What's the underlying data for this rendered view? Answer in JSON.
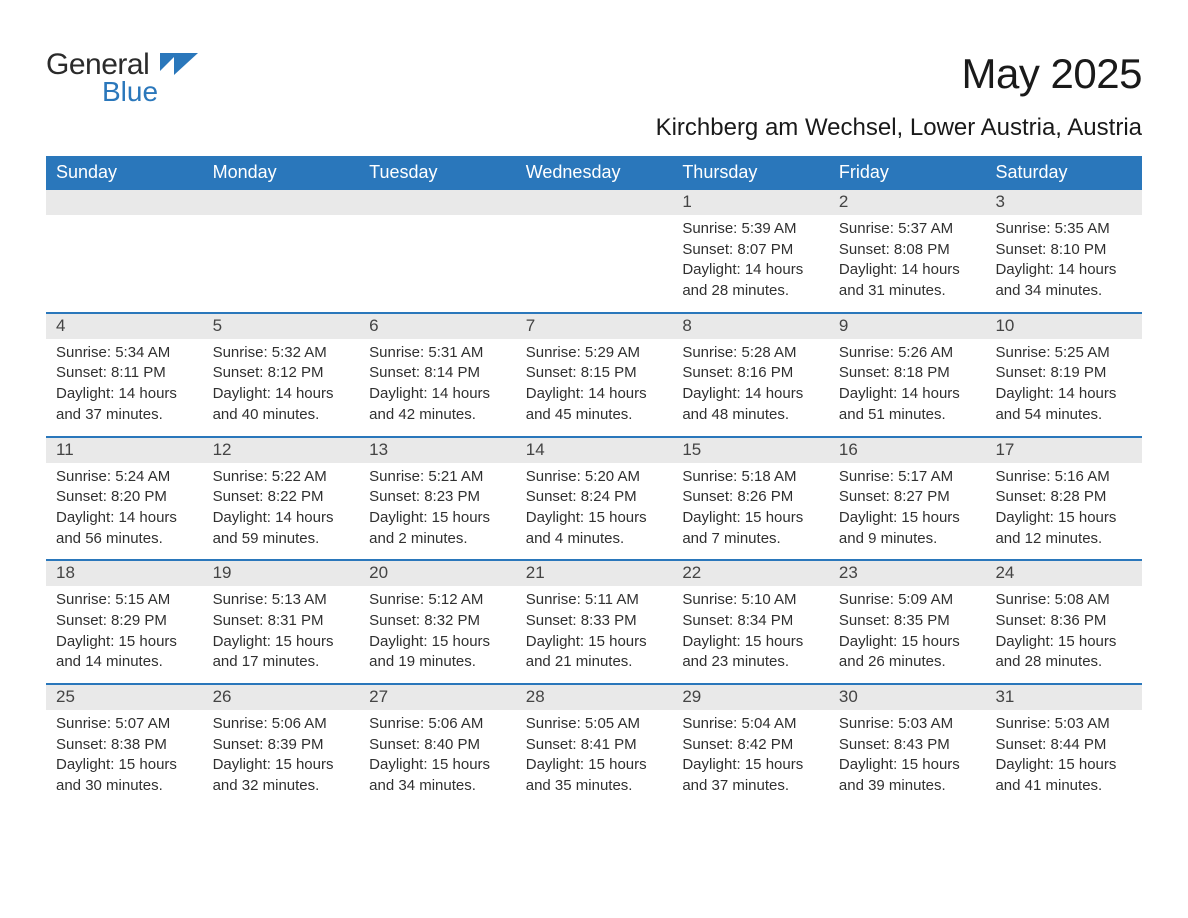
{
  "brand": {
    "general": "General",
    "blue": "Blue"
  },
  "title": "May 2025",
  "location": "Kirchberg am Wechsel, Lower Austria, Austria",
  "colors": {
    "header_bg": "#2a77bb",
    "header_text": "#ffffff",
    "daynum_bg": "#e9e9e9",
    "week_border": "#2a77bb",
    "body_text": "#303030",
    "background": "#ffffff"
  },
  "weekdays": [
    "Sunday",
    "Monday",
    "Tuesday",
    "Wednesday",
    "Thursday",
    "Friday",
    "Saturday"
  ],
  "weeks": [
    [
      {
        "day": "",
        "sunrise": "",
        "sunset": "",
        "daylight": ""
      },
      {
        "day": "",
        "sunrise": "",
        "sunset": "",
        "daylight": ""
      },
      {
        "day": "",
        "sunrise": "",
        "sunset": "",
        "daylight": ""
      },
      {
        "day": "",
        "sunrise": "",
        "sunset": "",
        "daylight": ""
      },
      {
        "day": "1",
        "sunrise": "Sunrise: 5:39 AM",
        "sunset": "Sunset: 8:07 PM",
        "daylight": "Daylight: 14 hours and 28 minutes."
      },
      {
        "day": "2",
        "sunrise": "Sunrise: 5:37 AM",
        "sunset": "Sunset: 8:08 PM",
        "daylight": "Daylight: 14 hours and 31 minutes."
      },
      {
        "day": "3",
        "sunrise": "Sunrise: 5:35 AM",
        "sunset": "Sunset: 8:10 PM",
        "daylight": "Daylight: 14 hours and 34 minutes."
      }
    ],
    [
      {
        "day": "4",
        "sunrise": "Sunrise: 5:34 AM",
        "sunset": "Sunset: 8:11 PM",
        "daylight": "Daylight: 14 hours and 37 minutes."
      },
      {
        "day": "5",
        "sunrise": "Sunrise: 5:32 AM",
        "sunset": "Sunset: 8:12 PM",
        "daylight": "Daylight: 14 hours and 40 minutes."
      },
      {
        "day": "6",
        "sunrise": "Sunrise: 5:31 AM",
        "sunset": "Sunset: 8:14 PM",
        "daylight": "Daylight: 14 hours and 42 minutes."
      },
      {
        "day": "7",
        "sunrise": "Sunrise: 5:29 AM",
        "sunset": "Sunset: 8:15 PM",
        "daylight": "Daylight: 14 hours and 45 minutes."
      },
      {
        "day": "8",
        "sunrise": "Sunrise: 5:28 AM",
        "sunset": "Sunset: 8:16 PM",
        "daylight": "Daylight: 14 hours and 48 minutes."
      },
      {
        "day": "9",
        "sunrise": "Sunrise: 5:26 AM",
        "sunset": "Sunset: 8:18 PM",
        "daylight": "Daylight: 14 hours and 51 minutes."
      },
      {
        "day": "10",
        "sunrise": "Sunrise: 5:25 AM",
        "sunset": "Sunset: 8:19 PM",
        "daylight": "Daylight: 14 hours and 54 minutes."
      }
    ],
    [
      {
        "day": "11",
        "sunrise": "Sunrise: 5:24 AM",
        "sunset": "Sunset: 8:20 PM",
        "daylight": "Daylight: 14 hours and 56 minutes."
      },
      {
        "day": "12",
        "sunrise": "Sunrise: 5:22 AM",
        "sunset": "Sunset: 8:22 PM",
        "daylight": "Daylight: 14 hours and 59 minutes."
      },
      {
        "day": "13",
        "sunrise": "Sunrise: 5:21 AM",
        "sunset": "Sunset: 8:23 PM",
        "daylight": "Daylight: 15 hours and 2 minutes."
      },
      {
        "day": "14",
        "sunrise": "Sunrise: 5:20 AM",
        "sunset": "Sunset: 8:24 PM",
        "daylight": "Daylight: 15 hours and 4 minutes."
      },
      {
        "day": "15",
        "sunrise": "Sunrise: 5:18 AM",
        "sunset": "Sunset: 8:26 PM",
        "daylight": "Daylight: 15 hours and 7 minutes."
      },
      {
        "day": "16",
        "sunrise": "Sunrise: 5:17 AM",
        "sunset": "Sunset: 8:27 PM",
        "daylight": "Daylight: 15 hours and 9 minutes."
      },
      {
        "day": "17",
        "sunrise": "Sunrise: 5:16 AM",
        "sunset": "Sunset: 8:28 PM",
        "daylight": "Daylight: 15 hours and 12 minutes."
      }
    ],
    [
      {
        "day": "18",
        "sunrise": "Sunrise: 5:15 AM",
        "sunset": "Sunset: 8:29 PM",
        "daylight": "Daylight: 15 hours and 14 minutes."
      },
      {
        "day": "19",
        "sunrise": "Sunrise: 5:13 AM",
        "sunset": "Sunset: 8:31 PM",
        "daylight": "Daylight: 15 hours and 17 minutes."
      },
      {
        "day": "20",
        "sunrise": "Sunrise: 5:12 AM",
        "sunset": "Sunset: 8:32 PM",
        "daylight": "Daylight: 15 hours and 19 minutes."
      },
      {
        "day": "21",
        "sunrise": "Sunrise: 5:11 AM",
        "sunset": "Sunset: 8:33 PM",
        "daylight": "Daylight: 15 hours and 21 minutes."
      },
      {
        "day": "22",
        "sunrise": "Sunrise: 5:10 AM",
        "sunset": "Sunset: 8:34 PM",
        "daylight": "Daylight: 15 hours and 23 minutes."
      },
      {
        "day": "23",
        "sunrise": "Sunrise: 5:09 AM",
        "sunset": "Sunset: 8:35 PM",
        "daylight": "Daylight: 15 hours and 26 minutes."
      },
      {
        "day": "24",
        "sunrise": "Sunrise: 5:08 AM",
        "sunset": "Sunset: 8:36 PM",
        "daylight": "Daylight: 15 hours and 28 minutes."
      }
    ],
    [
      {
        "day": "25",
        "sunrise": "Sunrise: 5:07 AM",
        "sunset": "Sunset: 8:38 PM",
        "daylight": "Daylight: 15 hours and 30 minutes."
      },
      {
        "day": "26",
        "sunrise": "Sunrise: 5:06 AM",
        "sunset": "Sunset: 8:39 PM",
        "daylight": "Daylight: 15 hours and 32 minutes."
      },
      {
        "day": "27",
        "sunrise": "Sunrise: 5:06 AM",
        "sunset": "Sunset: 8:40 PM",
        "daylight": "Daylight: 15 hours and 34 minutes."
      },
      {
        "day": "28",
        "sunrise": "Sunrise: 5:05 AM",
        "sunset": "Sunset: 8:41 PM",
        "daylight": "Daylight: 15 hours and 35 minutes."
      },
      {
        "day": "29",
        "sunrise": "Sunrise: 5:04 AM",
        "sunset": "Sunset: 8:42 PM",
        "daylight": "Daylight: 15 hours and 37 minutes."
      },
      {
        "day": "30",
        "sunrise": "Sunrise: 5:03 AM",
        "sunset": "Sunset: 8:43 PM",
        "daylight": "Daylight: 15 hours and 39 minutes."
      },
      {
        "day": "31",
        "sunrise": "Sunrise: 5:03 AM",
        "sunset": "Sunset: 8:44 PM",
        "daylight": "Daylight: 15 hours and 41 minutes."
      }
    ]
  ]
}
